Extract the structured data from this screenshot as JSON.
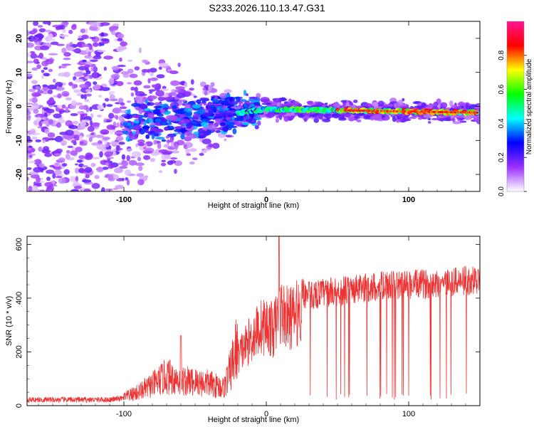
{
  "title": "S233.2026.110.13.47.G31",
  "chart_data": [
    {
      "type": "heatmap",
      "xlabel": "Height of straight line (km)",
      "ylabel": "Frequency (Hz)",
      "xlim": [
        -168,
        150
      ],
      "ylim": [
        -25,
        25
      ],
      "xticks": [
        -100,
        0,
        100
      ],
      "yticks": [
        -20,
        -10,
        0,
        10,
        20
      ],
      "colorbar": {
        "label": "Normalized spectral amplitude",
        "range": [
          0,
          1
        ],
        "ticks": [
          "0.0",
          "0.2",
          "0.4",
          "0.6",
          "0.8"
        ],
        "tick_values": [
          0.0,
          0.2,
          0.4,
          0.6,
          0.8
        ],
        "colors": [
          "#ffffff",
          "#9b30ff",
          "#0000ff",
          "#00ffff",
          "#00ff00",
          "#ffff00",
          "#ff0000",
          "#ff1493"
        ]
      },
      "ridge": {
        "description_values": [
          {
            "x": -20,
            "freq": -2,
            "amp": 0.35
          },
          {
            "x": -10,
            "freq": -0.5,
            "amp": 0.5
          },
          {
            "x": 0,
            "freq": -0.8,
            "amp": 0.6
          },
          {
            "x": 30,
            "freq": -0.8,
            "amp": 0.6
          },
          {
            "x": 60,
            "freq": -1.0,
            "amp": 0.8
          },
          {
            "x": 100,
            "freq": -1.2,
            "amp": 0.85
          },
          {
            "x": 140,
            "freq": -1.8,
            "amp": 0.9
          }
        ]
      }
    },
    {
      "type": "line",
      "xlabel": "Height of straight line (km)",
      "ylabel": "SNR (10 * v/v)",
      "xlim": [
        -168,
        150
      ],
      "ylim": [
        0,
        630
      ],
      "xticks": [
        -100,
        0,
        100
      ],
      "yticks": [
        0,
        200,
        400,
        600
      ],
      "series": [
        {
          "name": "SNR",
          "color": "#ee3333",
          "x": [
            -168,
            -150,
            -130,
            -110,
            -100,
            -90,
            -80,
            -70,
            -60,
            -50,
            -40,
            -30,
            -25,
            -20,
            -15,
            -10,
            -5,
            0,
            5,
            10,
            15,
            20,
            25,
            30,
            40,
            60,
            80,
            100,
            120,
            140,
            150
          ],
          "y": [
            22,
            22,
            22,
            22,
            28,
            45,
            70,
            100,
            85,
            80,
            75,
            60,
            120,
            210,
            250,
            290,
            330,
            340,
            320,
            400,
            370,
            380,
            420,
            410,
            420,
            430,
            445,
            450,
            455,
            465,
            470
          ]
        }
      ]
    }
  ]
}
